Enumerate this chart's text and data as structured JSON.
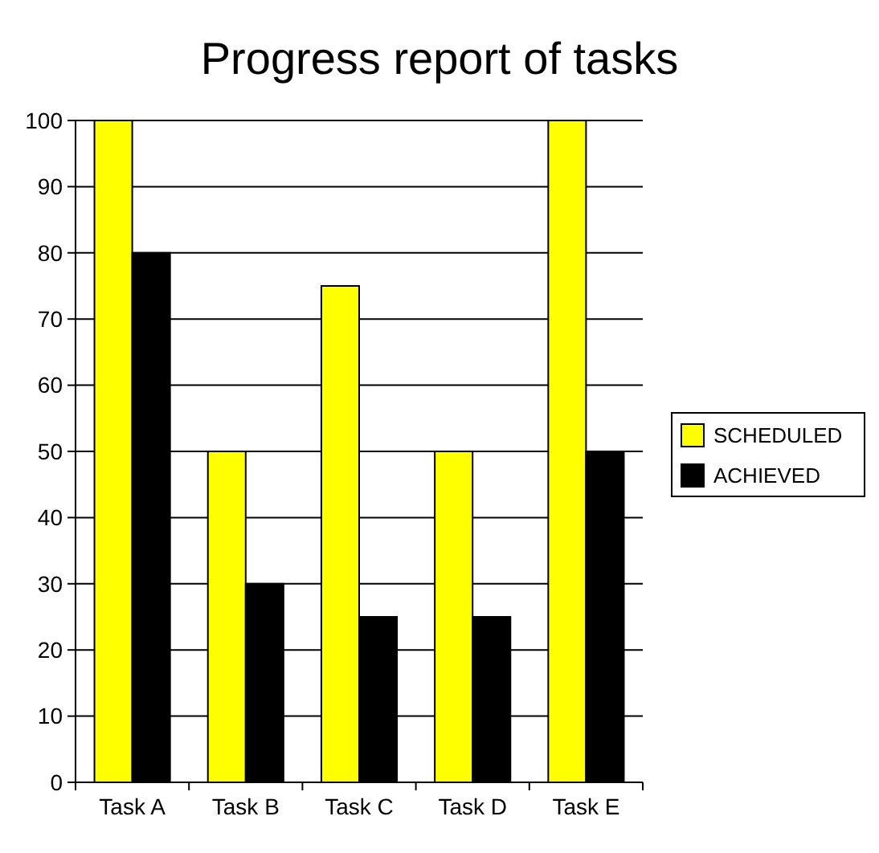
{
  "chart_data": {
    "type": "bar",
    "title": "Progress report of tasks",
    "categories": [
      "Task A",
      "Task B",
      "Task C",
      "Task D",
      "Task E"
    ],
    "series": [
      {
        "name": "SCHEDULED",
        "color": "#ffff00",
        "values": [
          100,
          50,
          75,
          50,
          100
        ]
      },
      {
        "name": "ACHIEVED",
        "color": "#000000",
        "values": [
          80,
          30,
          25,
          25,
          50
        ]
      }
    ],
    "ylim": [
      0,
      100
    ],
    "yticks": [
      0,
      10,
      20,
      30,
      40,
      50,
      60,
      70,
      80,
      90,
      100
    ],
    "grid": "y",
    "legend": "right"
  }
}
